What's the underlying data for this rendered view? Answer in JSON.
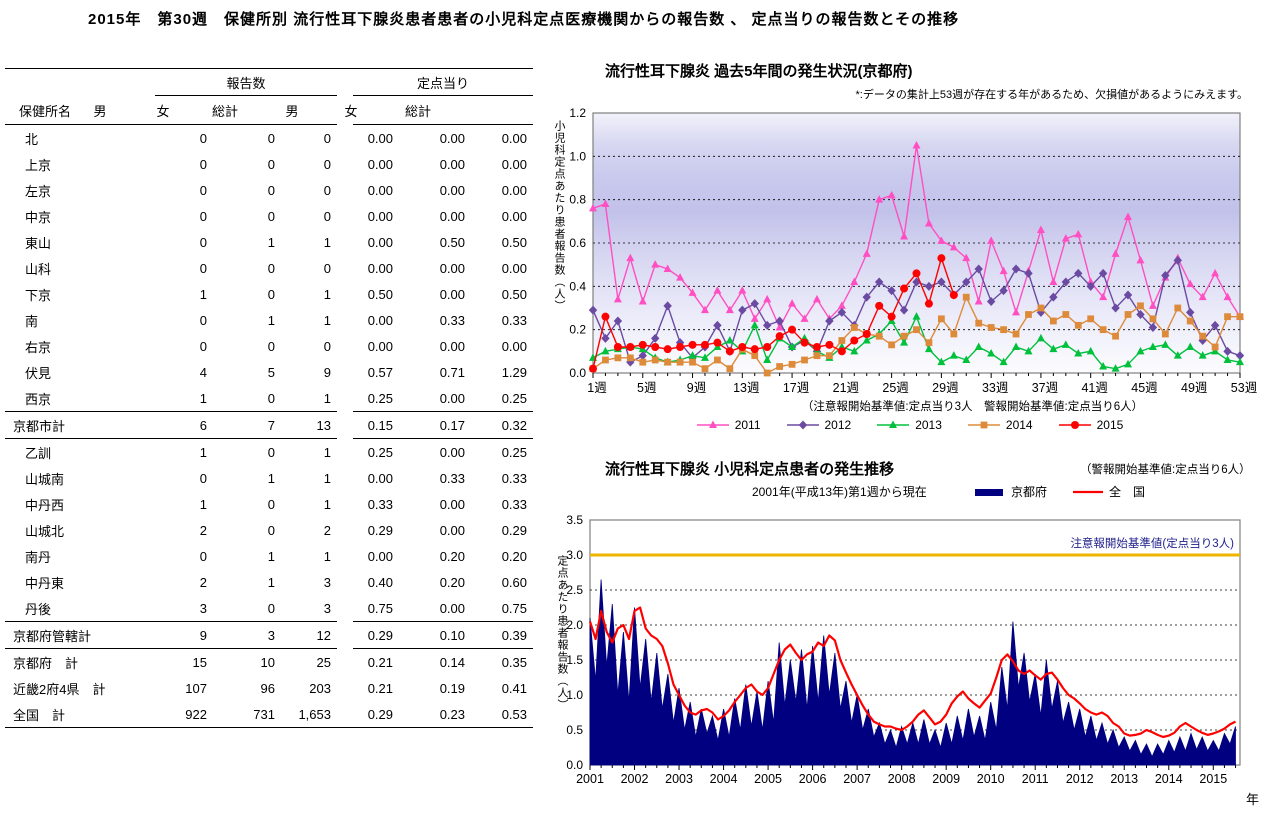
{
  "page_title": "2015年　第30週　保健所別 流行性耳下腺炎患者患者の小児科定点医療機関からの報告数 、 定点当りの報告数とその推移",
  "table": {
    "name_header": "保健所名",
    "group_headers": {
      "reports": "報告数",
      "per_sentinel": "定点当り"
    },
    "sub_headers": [
      "男",
      "女",
      "総計"
    ],
    "rows": [
      {
        "name": "北",
        "type": "data",
        "values": [
          "0",
          "0",
          "0",
          "0.00",
          "0.00",
          "0.00"
        ]
      },
      {
        "name": "上京",
        "type": "data",
        "values": [
          "0",
          "0",
          "0",
          "0.00",
          "0.00",
          "0.00"
        ]
      },
      {
        "name": "左京",
        "type": "data",
        "values": [
          "0",
          "0",
          "0",
          "0.00",
          "0.00",
          "0.00"
        ]
      },
      {
        "name": "中京",
        "type": "data",
        "values": [
          "0",
          "0",
          "0",
          "0.00",
          "0.00",
          "0.00"
        ]
      },
      {
        "name": "東山",
        "type": "data",
        "values": [
          "0",
          "1",
          "1",
          "0.00",
          "0.50",
          "0.50"
        ]
      },
      {
        "name": "山科",
        "type": "data",
        "values": [
          "0",
          "0",
          "0",
          "0.00",
          "0.00",
          "0.00"
        ]
      },
      {
        "name": "下京",
        "type": "data",
        "values": [
          "1",
          "0",
          "1",
          "0.50",
          "0.00",
          "0.50"
        ]
      },
      {
        "name": "南",
        "type": "data",
        "values": [
          "0",
          "1",
          "1",
          "0.00",
          "0.33",
          "0.33"
        ]
      },
      {
        "name": "右京",
        "type": "data",
        "values": [
          "0",
          "0",
          "0",
          "0.00",
          "0.00",
          "0.00"
        ]
      },
      {
        "name": "伏見",
        "type": "data",
        "values": [
          "4",
          "5",
          "9",
          "0.57",
          "0.71",
          "1.29"
        ]
      },
      {
        "name": "西京",
        "type": "data",
        "values": [
          "1",
          "0",
          "1",
          "0.25",
          "0.00",
          "0.25"
        ]
      },
      {
        "name": "京都市計",
        "type": "subtotal",
        "rule_above": true,
        "rule_below": true,
        "values": [
          "6",
          "7",
          "13",
          "0.15",
          "0.17",
          "0.32"
        ]
      },
      {
        "name": "乙訓",
        "type": "data",
        "values": [
          "1",
          "0",
          "1",
          "0.25",
          "0.00",
          "0.25"
        ]
      },
      {
        "name": "山城南",
        "type": "data",
        "values": [
          "0",
          "1",
          "1",
          "0.00",
          "0.33",
          "0.33"
        ]
      },
      {
        "name": "中丹西",
        "type": "data",
        "values": [
          "1",
          "0",
          "1",
          "0.33",
          "0.00",
          "0.33"
        ]
      },
      {
        "name": "山城北",
        "type": "data",
        "values": [
          "2",
          "0",
          "2",
          "0.29",
          "0.00",
          "0.29"
        ]
      },
      {
        "name": "南丹",
        "type": "data",
        "values": [
          "0",
          "1",
          "1",
          "0.00",
          "0.20",
          "0.20"
        ]
      },
      {
        "name": "中丹東",
        "type": "data",
        "values": [
          "2",
          "1",
          "3",
          "0.40",
          "0.20",
          "0.60"
        ]
      },
      {
        "name": "丹後",
        "type": "data",
        "values": [
          "3",
          "0",
          "3",
          "0.75",
          "0.00",
          "0.75"
        ]
      },
      {
        "name": "京都府管轄計",
        "type": "subtotal",
        "rule_above": true,
        "rule_below": true,
        "values": [
          "9",
          "3",
          "12",
          "0.29",
          "0.10",
          "0.39"
        ]
      },
      {
        "name": "京都府　計",
        "type": "total",
        "values": [
          "15",
          "10",
          "25",
          "0.21",
          "0.14",
          "0.35"
        ]
      },
      {
        "name": "近畿2府4県　計",
        "type": "total",
        "values": [
          "107",
          "96",
          "203",
          "0.21",
          "0.19",
          "0.41"
        ]
      },
      {
        "name": "全国　計",
        "type": "total",
        "values": [
          "922",
          "731",
          "1,653",
          "0.29",
          "0.23",
          "0.53"
        ]
      }
    ]
  },
  "chart_data": [
    {
      "type": "line",
      "title": "流行性耳下腺炎 過去5年間の発生状況(京都府)",
      "note": "*:データの集計上53週が存在する年があるため、欠損値があるようにみえます。",
      "ylabel": "小児科定点あたり患者報告数（人）",
      "xlabel_note": "（注意報開始基準値:定点当り3人　警報開始基準値:定点当り6人）",
      "x_unit": "週",
      "weeks": 53,
      "x_tick_step": 4,
      "ylim": [
        0,
        1.2
      ],
      "y_tick_step": 0.2,
      "grid": true,
      "legend_position": "bottom",
      "plot_border_color": "#808080",
      "series": [
        {
          "name": "2011",
          "color": "#ff4fc2",
          "marker": "triangle",
          "values": [
            0.76,
            0.78,
            0.34,
            0.53,
            0.33,
            0.5,
            0.48,
            0.44,
            0.37,
            0.29,
            0.38,
            0.29,
            0.38,
            0.25,
            0.34,
            0.21,
            0.32,
            0.25,
            0.34,
            0.25,
            0.31,
            0.42,
            0.55,
            0.8,
            0.82,
            0.63,
            1.05,
            0.69,
            0.61,
            0.58,
            0.53,
            0.33,
            0.61,
            0.47,
            0.28,
            0.47,
            0.66,
            0.42,
            0.62,
            0.64,
            0.42,
            0.35,
            0.55,
            0.72,
            0.52,
            0.31,
            0.44,
            0.53,
            0.41,
            0.35,
            0.46,
            0.35,
            0.26
          ]
        },
        {
          "name": "2012",
          "color": "#6b4aa2",
          "marker": "diamond",
          "values": [
            0.29,
            0.16,
            0.24,
            0.05,
            0.08,
            0.16,
            0.31,
            0.14,
            0.07,
            0.12,
            0.22,
            0.1,
            0.29,
            0.32,
            0.22,
            0.24,
            0.12,
            0.15,
            0.1,
            0.24,
            0.28,
            0.22,
            0.35,
            0.42,
            0.38,
            0.29,
            0.42,
            0.4,
            0.42,
            0.36,
            0.42,
            0.48,
            0.33,
            0.38,
            0.48,
            0.46,
            0.28,
            0.35,
            0.42,
            0.46,
            0.4,
            0.46,
            0.3,
            0.36,
            0.27,
            0.21,
            0.45,
            0.52,
            0.28,
            0.15,
            0.22,
            0.1,
            0.08
          ]
        },
        {
          "name": "2013",
          "color": "#00c03c",
          "marker": "triangle",
          "values": [
            0.07,
            0.1,
            0.11,
            0.12,
            0.11,
            0.07,
            0.05,
            0.06,
            0.08,
            0.07,
            0.12,
            0.15,
            0.1,
            0.22,
            0.06,
            0.16,
            0.12,
            0.16,
            0.1,
            0.07,
            0.12,
            0.1,
            0.15,
            0.18,
            0.24,
            0.14,
            0.26,
            0.11,
            0.05,
            0.08,
            0.06,
            0.12,
            0.09,
            0.05,
            0.12,
            0.1,
            0.16,
            0.11,
            0.13,
            0.09,
            0.1,
            0.03,
            0.02,
            0.04,
            0.1,
            0.12,
            0.13,
            0.08,
            0.12,
            0.08,
            0.1,
            0.06,
            0.05
          ]
        },
        {
          "name": "2014",
          "color": "#dd8b3a",
          "marker": "square",
          "values": [
            0.02,
            0.06,
            0.07,
            0.07,
            0.05,
            0.06,
            0.05,
            0.05,
            0.05,
            0.02,
            0.06,
            0.02,
            0.11,
            0.08,
            0.0,
            0.03,
            0.04,
            0.06,
            0.08,
            0.08,
            0.15,
            0.21,
            0.18,
            0.17,
            0.13,
            0.17,
            0.2,
            0.14,
            0.25,
            0.18,
            0.35,
            0.23,
            0.21,
            0.2,
            0.18,
            0.27,
            0.3,
            0.24,
            0.27,
            0.22,
            0.25,
            0.2,
            0.17,
            0.27,
            0.31,
            0.25,
            0.18,
            0.3,
            0.24,
            0.17,
            0.12,
            0.26,
            0.26
          ]
        },
        {
          "name": "2015",
          "color": "#ff0000",
          "marker": "circle",
          "values": [
            0.02,
            0.26,
            0.12,
            0.12,
            0.13,
            0.12,
            0.11,
            0.12,
            0.13,
            0.13,
            0.14,
            0.1,
            0.12,
            0.11,
            0.12,
            0.17,
            0.2,
            0.14,
            0.12,
            0.13,
            0.1,
            0.15,
            0.18,
            0.31,
            0.26,
            0.39,
            0.46,
            0.32,
            0.53,
            0.36,
            null,
            null,
            null,
            null,
            null,
            null,
            null,
            null,
            null,
            null,
            null,
            null,
            null,
            null,
            null,
            null,
            null,
            null,
            null,
            null,
            null,
            null,
            null
          ]
        }
      ]
    },
    {
      "type": "area-line",
      "title": "流行性耳下腺炎 小児科定点患者の発生推移",
      "subtitle": "2001年(平成13年)第1週から現在",
      "note": "（警報開始基準値:定点当り6人）",
      "ylabel": "定点あたり患者報告数（人）",
      "x_unit_label": "年",
      "ylim": [
        0,
        3.5
      ],
      "y_tick_step": 0.5,
      "grid": true,
      "x_start": 2001,
      "x_step": 0.125,
      "x_max": 2015.6,
      "x_ticks": [
        2001,
        2002,
        2003,
        2004,
        2005,
        2006,
        2007,
        2008,
        2009,
        2010,
        2011,
        2012,
        2013,
        2014,
        2015
      ],
      "plot_border_color": "#808080",
      "threshold": {
        "value": 3.0,
        "label": "注意報開始基準値(定点当り3人)",
        "color": "#eeb400",
        "label_color": "#1f1f8c"
      },
      "series": [
        {
          "name": "京都府",
          "color": "#000080",
          "style": "area",
          "values": [
            2.1,
            1.2,
            2.65,
            1.4,
            2.3,
            1.0,
            1.9,
            0.9,
            2.25,
            1.1,
            1.8,
            0.9,
            1.6,
            0.8,
            1.3,
            0.6,
            1.1,
            0.5,
            0.9,
            0.4,
            0.8,
            0.45,
            0.7,
            0.35,
            0.8,
            0.4,
            0.95,
            0.5,
            1.15,
            0.55,
            1.05,
            0.5,
            1.2,
            0.6,
            1.75,
            0.85,
            1.5,
            0.9,
            1.65,
            0.8,
            1.7,
            0.9,
            1.85,
            1.0,
            1.6,
            0.8,
            1.2,
            0.6,
            1.0,
            0.5,
            0.8,
            0.4,
            0.6,
            0.3,
            0.5,
            0.25,
            0.55,
            0.3,
            0.6,
            0.3,
            0.65,
            0.3,
            0.5,
            0.25,
            0.6,
            0.3,
            0.7,
            0.35,
            0.8,
            0.4,
            0.7,
            0.35,
            0.9,
            0.5,
            1.4,
            0.8,
            2.05,
            1.1,
            1.6,
            0.9,
            1.3,
            0.7,
            1.5,
            0.8,
            1.2,
            0.6,
            0.9,
            0.5,
            0.8,
            0.4,
            0.7,
            0.35,
            0.6,
            0.3,
            0.5,
            0.25,
            0.4,
            0.2,
            0.35,
            0.15,
            0.3,
            0.12,
            0.3,
            0.15,
            0.35,
            0.18,
            0.4,
            0.2,
            0.45,
            0.22,
            0.4,
            0.2,
            0.35,
            0.2,
            0.45,
            0.3,
            0.55
          ]
        },
        {
          "name": "全　国",
          "color": "#ff0000",
          "style": "line",
          "values": [
            2.05,
            1.8,
            2.2,
            1.9,
            1.75,
            1.95,
            2.0,
            1.8,
            2.2,
            2.25,
            1.95,
            1.85,
            1.8,
            1.7,
            1.45,
            1.15,
            1.0,
            0.85,
            0.75,
            0.72,
            0.78,
            0.8,
            0.75,
            0.65,
            0.7,
            0.78,
            0.9,
            1.0,
            1.1,
            1.15,
            1.05,
            1.0,
            1.1,
            1.3,
            1.5,
            1.65,
            1.72,
            1.6,
            1.5,
            1.58,
            1.62,
            1.75,
            1.7,
            1.85,
            1.78,
            1.5,
            1.32,
            1.15,
            1.0,
            0.85,
            0.72,
            0.62,
            0.58,
            0.55,
            0.55,
            0.52,
            0.5,
            0.55,
            0.62,
            0.72,
            0.78,
            0.68,
            0.58,
            0.62,
            0.72,
            0.88,
            0.98,
            1.05,
            0.95,
            0.88,
            0.82,
            0.92,
            1.02,
            1.25,
            1.5,
            1.58,
            1.48,
            1.35,
            1.3,
            1.35,
            1.28,
            1.22,
            1.3,
            1.32,
            1.22,
            1.1,
            1.0,
            0.95,
            0.88,
            0.8,
            0.75,
            0.72,
            0.75,
            0.7,
            0.6,
            0.55,
            0.45,
            0.42,
            0.43,
            0.45,
            0.5,
            0.47,
            0.43,
            0.4,
            0.42,
            0.46,
            0.55,
            0.6,
            0.55,
            0.5,
            0.46,
            0.43,
            0.45,
            0.48,
            0.52,
            0.58,
            0.62
          ]
        }
      ]
    }
  ]
}
